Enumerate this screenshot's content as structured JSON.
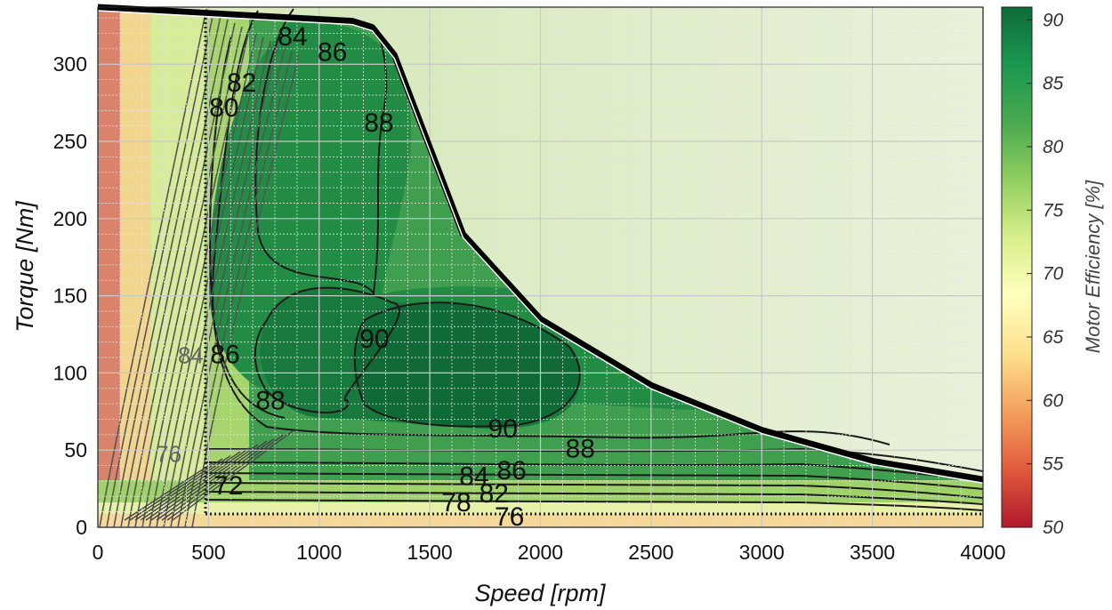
{
  "chart_data": {
    "type": "contour",
    "xlabel": "Speed [rpm]",
    "ylabel": "Torque [Nm]",
    "colorbar_label": "Motor Efficiency [%]",
    "xlim": [
      0,
      4000
    ],
    "ylim": [
      0,
      337
    ],
    "x_ticks": [
      "0",
      "500",
      "1000",
      "1500",
      "2000",
      "2500",
      "3000",
      "3500",
      "4000"
    ],
    "y_ticks": [
      "0",
      "50",
      "100",
      "150",
      "200",
      "250",
      "300"
    ],
    "colorbar_range": [
      50,
      91
    ],
    "colorbar_ticks": [
      "50",
      "55",
      "60",
      "65",
      "70",
      "75",
      "80",
      "85",
      "90"
    ],
    "colormap": [
      "#b2182b",
      "#e05a3c",
      "#f4a05c",
      "#fee08b",
      "#ffffbf",
      "#d9ef8b",
      "#91cf60",
      "#4aa94e",
      "#1a9850",
      "#0e6b37"
    ],
    "grid": true,
    "max_torque_envelope": [
      {
        "x": 0,
        "y": 337
      },
      {
        "x": 1150,
        "y": 328
      },
      {
        "x": 1240,
        "y": 324
      },
      {
        "x": 1340,
        "y": 306
      },
      {
        "x": 1650,
        "y": 190
      },
      {
        "x": 2000,
        "y": 135
      },
      {
        "x": 2500,
        "y": 92
      },
      {
        "x": 3000,
        "y": 63
      },
      {
        "x": 3500,
        "y": 43
      },
      {
        "x": 4000,
        "y": 31
      }
    ],
    "contour_labels": [
      {
        "text": "84",
        "x": 880,
        "y": 318
      },
      {
        "text": "86",
        "x": 1060,
        "y": 308
      },
      {
        "text": "82",
        "x": 650,
        "y": 288
      },
      {
        "text": "80",
        "x": 570,
        "y": 272
      },
      {
        "text": "88",
        "x": 1270,
        "y": 262
      },
      {
        "text": "90",
        "x": 1250,
        "y": 122
      },
      {
        "text": "86",
        "x": 575,
        "y": 112
      },
      {
        "text": "88",
        "x": 780,
        "y": 82
      },
      {
        "text": "90",
        "x": 1830,
        "y": 64
      },
      {
        "text": "88",
        "x": 2180,
        "y": 51
      },
      {
        "text": "86",
        "x": 1870,
        "y": 37
      },
      {
        "text": "84",
        "x": 1700,
        "y": 33
      },
      {
        "text": "82",
        "x": 1790,
        "y": 22
      },
      {
        "text": "78",
        "x": 1620,
        "y": 16
      },
      {
        "text": "76",
        "x": 1860,
        "y": 7
      },
      {
        "text": "84",
        "x": 420,
        "y": 112
      },
      {
        "text": "76",
        "x": 320,
        "y": 48
      },
      {
        "text": "72",
        "x": 590,
        "y": 27
      }
    ]
  }
}
